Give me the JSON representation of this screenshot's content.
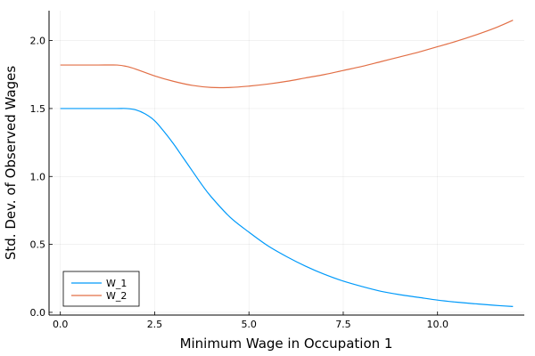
{
  "chart_data": {
    "type": "line",
    "xlabel": "Minimum Wage in Occupation 1",
    "ylabel": "Std. Dev. of Observed Wages",
    "xlim": [
      -0.3,
      12.3
    ],
    "ylim": [
      -0.02,
      2.22
    ],
    "xticks": [
      0,
      2.5,
      5,
      7.5,
      10
    ],
    "xtick_labels": [
      "0.0",
      "2.5",
      "5.0",
      "7.5",
      "10.0"
    ],
    "yticks": [
      0,
      0.5,
      1.0,
      1.5,
      2.0
    ],
    "ytick_labels": [
      "0.0",
      "0.5",
      "1.0",
      "1.5",
      "2.0"
    ],
    "grid": true,
    "legend_position": "bottom-left",
    "series": [
      {
        "name": "W_1",
        "color": "#009AFA",
        "x": [
          0,
          0.5,
          1.0,
          1.5,
          1.75,
          2.0,
          2.25,
          2.5,
          2.75,
          3.0,
          3.25,
          3.5,
          3.75,
          4.0,
          4.5,
          5.0,
          5.5,
          6.0,
          6.5,
          7.0,
          7.5,
          8.0,
          8.5,
          9.0,
          9.5,
          10.0,
          10.5,
          11.0,
          11.5,
          12.0
        ],
        "y": [
          1.5,
          1.5,
          1.5,
          1.5,
          1.5,
          1.49,
          1.46,
          1.41,
          1.33,
          1.24,
          1.14,
          1.04,
          0.94,
          0.85,
          0.7,
          0.59,
          0.49,
          0.41,
          0.34,
          0.28,
          0.23,
          0.19,
          0.155,
          0.13,
          0.11,
          0.09,
          0.075,
          0.063,
          0.052,
          0.043
        ]
      },
      {
        "name": "W_2",
        "color": "#E26F46",
        "x": [
          0,
          0.5,
          1.0,
          1.5,
          1.75,
          2.0,
          2.5,
          3.0,
          3.5,
          4.0,
          4.5,
          5.0,
          5.5,
          6.0,
          6.5,
          7.0,
          7.5,
          8.0,
          8.5,
          9.0,
          9.5,
          10.0,
          10.5,
          11.0,
          11.5,
          12.0
        ],
        "y": [
          1.82,
          1.82,
          1.82,
          1.82,
          1.81,
          1.79,
          1.74,
          1.7,
          1.67,
          1.655,
          1.655,
          1.665,
          1.68,
          1.7,
          1.725,
          1.75,
          1.78,
          1.81,
          1.845,
          1.88,
          1.915,
          1.955,
          1.995,
          2.04,
          2.09,
          2.15
        ]
      }
    ]
  }
}
